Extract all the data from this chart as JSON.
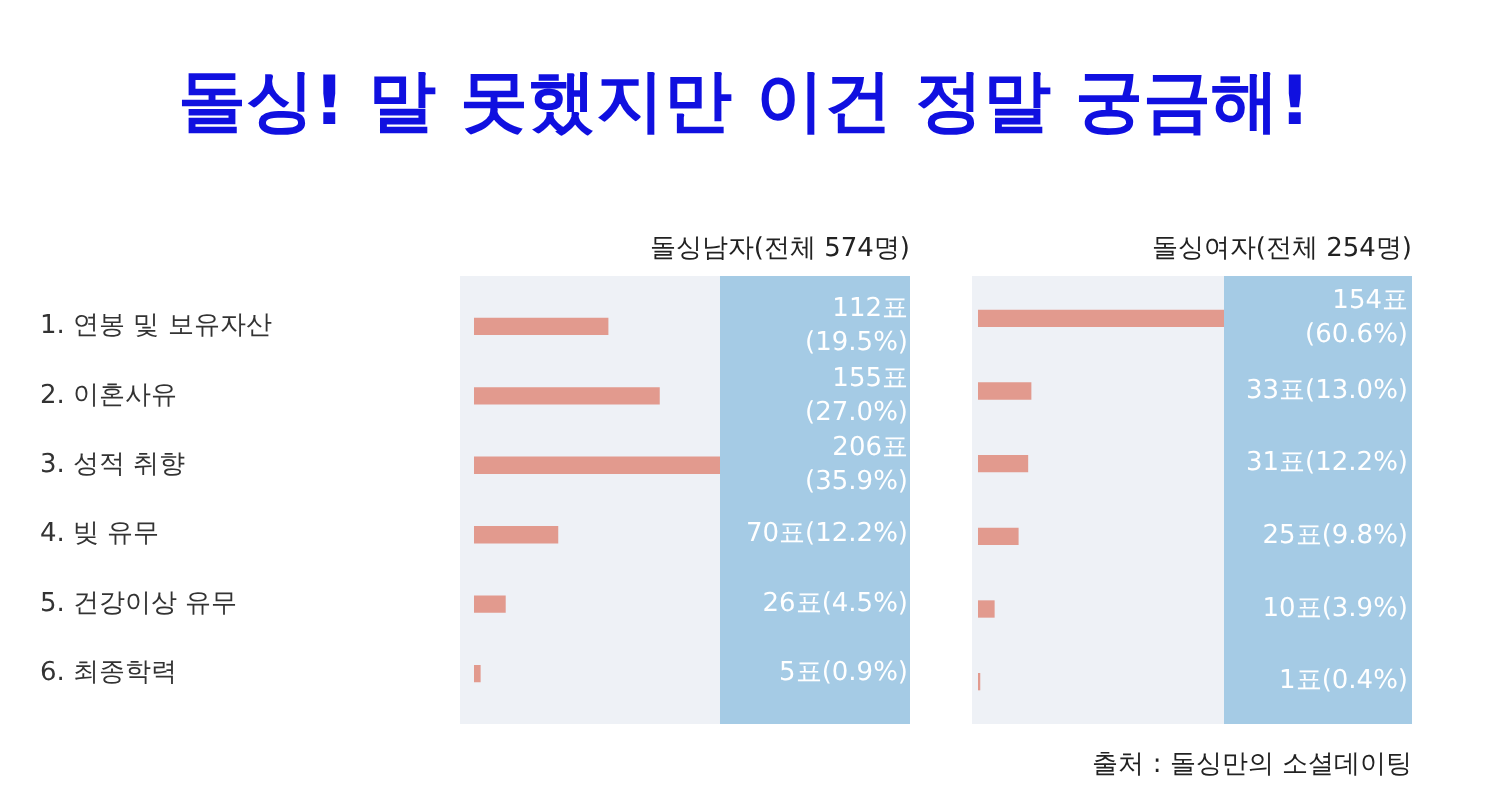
{
  "chart_data": [
    {
      "type": "bar",
      "orientation": "horizontal",
      "title": "돌싱! 말 못했지만 이건 정말 궁금해!",
      "subtitle": "돌싱남자(전체 574명)",
      "categories": [
        "1. 연봉 및 보유자산",
        "2. 이혼사유",
        "3. 성적 취향",
        "4. 빚 유무",
        "5. 건강이상 유무",
        "6. 최종학력"
      ],
      "values": [
        112,
        155,
        206,
        70,
        26,
        5
      ],
      "color": "#e29a8e",
      "value_labels": [
        "112표 (19.5%)",
        "155표 (27.0%)",
        "206표 (35.9%)",
        "70표(12.2%)",
        "26표(4.5%)",
        "5표(0.9%)"
      ],
      "grid": false,
      "legend": false,
      "tick_labels": "y"
    },
    {
      "type": "bar",
      "orientation": "horizontal",
      "subtitle": "돌싱여자(전체 254명)",
      "categories": [
        null,
        null,
        null,
        null,
        null,
        null
      ],
      "values": [
        154,
        33,
        31,
        25,
        10,
        1
      ],
      "color": "#e29a8e",
      "value_labels": [
        "154표 (60.6%)",
        "33표(13.0%)",
        "31표(12.2%)",
        "25표(9.8%)",
        "10표(3.9%)",
        "1표(0.4%)"
      ],
      "grid": false,
      "legend": false,
      "tick_labels": false,
      "annotations": [
        "출처 : 돌싱만의 소셜데이팅"
      ]
    }
  ]
}
